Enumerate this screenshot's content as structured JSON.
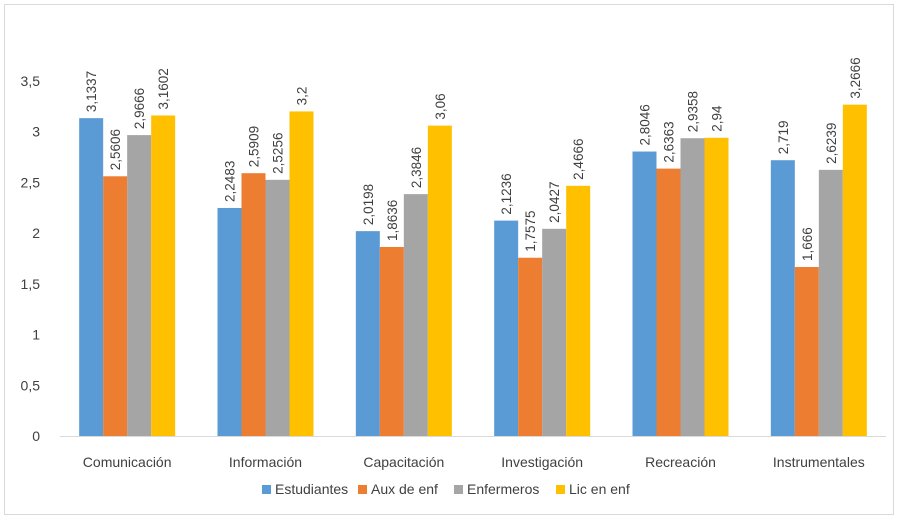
{
  "chart_data": {
    "type": "bar",
    "categories": [
      "Comunicación",
      "Información",
      "Capacitación",
      "Investigación",
      "Recreación",
      "Instrumentales"
    ],
    "series": [
      {
        "name": "Estudiantes",
        "color": "#5b9bd5",
        "values": [
          3.1337,
          2.2483,
          2.0198,
          2.1236,
          2.8046,
          2.719
        ],
        "labels": [
          "3,1337",
          "2,2483",
          "2,0198",
          "2,1236",
          "2,8046",
          "2,719"
        ]
      },
      {
        "name": "Aux de enf",
        "color": "#ed7d31",
        "values": [
          2.5606,
          2.5909,
          1.8636,
          1.7575,
          2.6363,
          1.666
        ],
        "labels": [
          "2,5606",
          "2,5909",
          "1,8636",
          "1,7575",
          "2,6363",
          "1,666"
        ]
      },
      {
        "name": "Enfermeros",
        "color": "#a5a5a5",
        "values": [
          2.9666,
          2.5256,
          2.3846,
          2.0427,
          2.9358,
          2.6239
        ],
        "labels": [
          "2,9666",
          "2,5256",
          "2,3846",
          "2,0427",
          "2,9358",
          "2,6239"
        ]
      },
      {
        "name": "Lic en enf",
        "color": "#ffc000",
        "values": [
          3.1602,
          3.2,
          3.06,
          2.4666,
          2.94,
          3.2666
        ],
        "labels": [
          "3,1602",
          "3,2",
          "3,06",
          "2,4666",
          "2,94",
          "3,2666"
        ]
      }
    ],
    "yticks": [
      0,
      0.5,
      1,
      1.5,
      2,
      2.5,
      3,
      3.5
    ],
    "ytick_labels": [
      "0",
      "0,5",
      "1",
      "1,5",
      "2",
      "2,5",
      "3",
      "3,5"
    ],
    "ylim": [
      0,
      3.5
    ],
    "grid": false,
    "legend": "bottom",
    "title": "",
    "xlabel": "",
    "ylabel": ""
  }
}
